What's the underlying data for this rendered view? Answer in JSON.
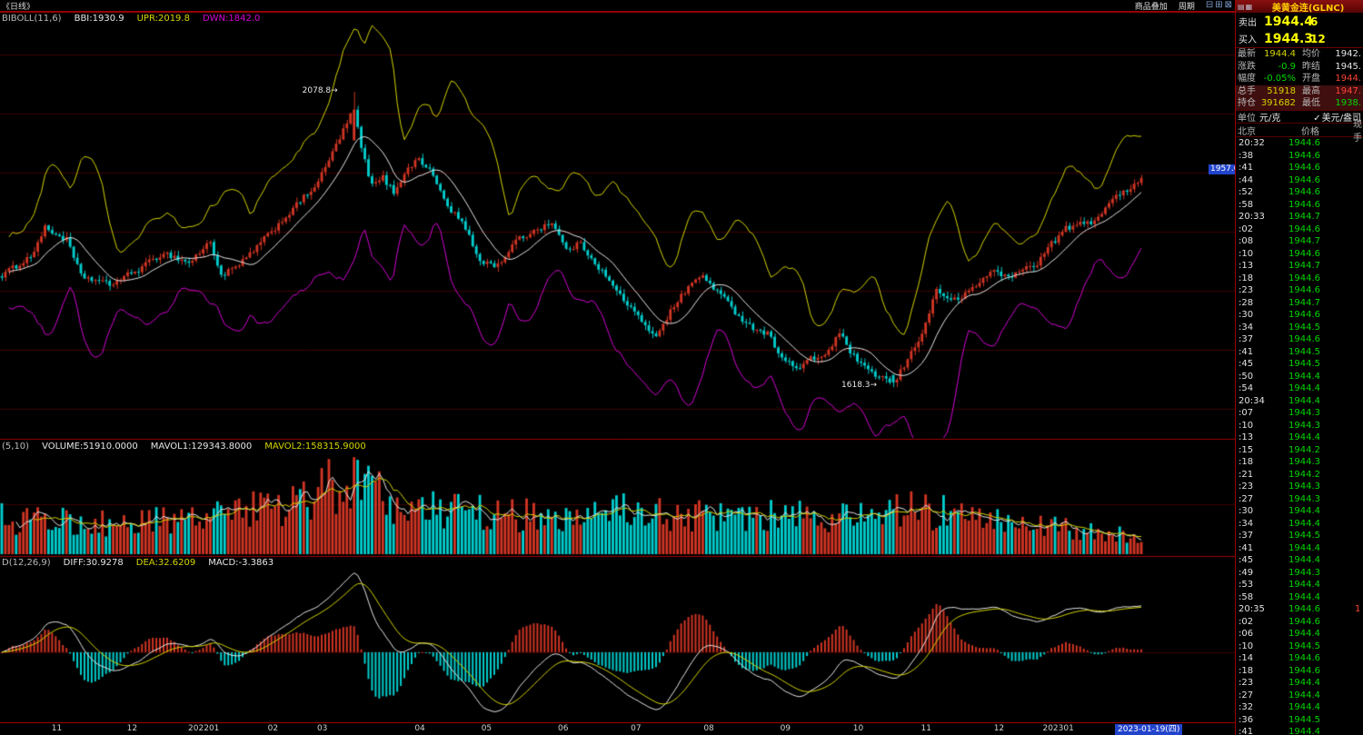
{
  "window": {
    "period_label": "《日线》",
    "toolbar": {
      "overlay_label": "商品叠加",
      "period_label": "周期",
      "window_icons": [
        {
          "name": "minimize-icon",
          "glyph": "⊟"
        },
        {
          "name": "restore-icon",
          "glyph": "⊞"
        },
        {
          "name": "close-icon",
          "glyph": "⊠"
        }
      ]
    },
    "panel_title": "美黄金连(GLNC)",
    "panel_icons": [
      {
        "name": "menu-icon",
        "glyph": "▤"
      },
      {
        "name": "list-icon",
        "glyph": "▦"
      }
    ]
  },
  "indicators": {
    "boll": {
      "segments": [
        {
          "text": "BIBOLL(11,6)",
          "color": "gray"
        },
        {
          "text": "BBI:1930.9",
          "color": "white"
        },
        {
          "text": "UPR:2019.8",
          "color": "yellow"
        },
        {
          "text": "DWN:1842.0",
          "color": "magenta"
        }
      ]
    },
    "volume": {
      "segments": [
        {
          "text": "(5,10)",
          "color": "gray"
        },
        {
          "text": "VOLUME:51910.0000",
          "color": "white"
        },
        {
          "text": "MAVOL1:129343.8000",
          "color": "white"
        },
        {
          "text": "MAVOL2:158315.9000",
          "color": "yellow"
        }
      ]
    },
    "macd": {
      "segments": [
        {
          "text": "D(12,26,9)",
          "color": "gray"
        },
        {
          "text": "DIFF:30.9278",
          "color": "white"
        },
        {
          "text": "DEA:32.6209",
          "color": "yellow"
        },
        {
          "text": "MACD:-3.3863",
          "color": "white"
        }
      ]
    }
  },
  "quote": {
    "sell": {
      "label": "卖出",
      "price": "1944.4",
      "qty": "6"
    },
    "buy": {
      "label": "买入",
      "price": "1944.3",
      "qty": "12"
    },
    "stats": [
      {
        "l1": "最新",
        "v1": "1944.4",
        "c1": "yellow",
        "l2": "均价",
        "v2": "1942.",
        "c2": "white",
        "hl": false
      },
      {
        "l1": "涨跌",
        "v1": "-0.9",
        "c1": "green",
        "l2": "昨结",
        "v2": "1945.",
        "c2": "white",
        "hl": false
      },
      {
        "l1": "幅度",
        "v1": "-0.05%",
        "c1": "green",
        "l2": "开盘",
        "v2": "1944.",
        "c2": "red",
        "hl": false
      },
      {
        "l1": "总手",
        "v1": "51918",
        "c1": "yellow",
        "l2": "最高",
        "v2": "1947.",
        "c2": "red",
        "hl": true
      },
      {
        "l1": "持仓",
        "v1": "391682",
        "c1": "yellow",
        "l2": "最低",
        "v2": "1938.",
        "c2": "green",
        "hl": true
      }
    ],
    "unit": {
      "label": "单位",
      "unit_cn": "元/克",
      "check": "✓",
      "unit_us": "美元/盎司"
    },
    "list_header": {
      "col_time": "北京",
      "col_price": "价格",
      "col_lot": "现手"
    },
    "ticks": [
      {
        "t": "20:32",
        "p": "1944.6"
      },
      {
        "t": ":38",
        "p": "1944.6"
      },
      {
        "t": ":41",
        "p": "1944.6"
      },
      {
        "t": ":44",
        "p": "1944.6"
      },
      {
        "t": ":52",
        "p": "1944.6"
      },
      {
        "t": ":58",
        "p": "1944.6"
      },
      {
        "t": "20:33",
        "p": "1944.7"
      },
      {
        "t": ":02",
        "p": "1944.6"
      },
      {
        "t": ":08",
        "p": "1944.7"
      },
      {
        "t": ":10",
        "p": "1944.6"
      },
      {
        "t": ":13",
        "p": "1944.7"
      },
      {
        "t": ":18",
        "p": "1944.6"
      },
      {
        "t": ":23",
        "p": "1944.6"
      },
      {
        "t": ":28",
        "p": "1944.7"
      },
      {
        "t": ":30",
        "p": "1944.6"
      },
      {
        "t": ":34",
        "p": "1944.5"
      },
      {
        "t": ":37",
        "p": "1944.6"
      },
      {
        "t": ":41",
        "p": "1944.5"
      },
      {
        "t": ":45",
        "p": "1944.5"
      },
      {
        "t": ":50",
        "p": "1944.4"
      },
      {
        "t": ":54",
        "p": "1944.4"
      },
      {
        "t": "20:34",
        "p": "1944.4"
      },
      {
        "t": ":07",
        "p": "1944.3"
      },
      {
        "t": ":10",
        "p": "1944.3"
      },
      {
        "t": ":13",
        "p": "1944.4"
      },
      {
        "t": ":15",
        "p": "1944.2"
      },
      {
        "t": ":18",
        "p": "1944.3"
      },
      {
        "t": ":21",
        "p": "1944.2"
      },
      {
        "t": ":23",
        "p": "1944.3"
      },
      {
        "t": ":27",
        "p": "1944.3"
      },
      {
        "t": ":30",
        "p": "1944.4"
      },
      {
        "t": ":34",
        "p": "1944.4"
      },
      {
        "t": ":37",
        "p": "1944.5"
      },
      {
        "t": ":41",
        "p": "1944.4"
      },
      {
        "t": ":45",
        "p": "1944.4"
      },
      {
        "t": ":49",
        "p": "1944.3"
      },
      {
        "t": ":53",
        "p": "1944.4"
      },
      {
        "t": ":58",
        "p": "1944.4"
      },
      {
        "t": "20:35",
        "p": "1944.6",
        "lot": "1"
      },
      {
        "t": ":02",
        "p": "1944.6"
      },
      {
        "t": ":06",
        "p": "1944.4"
      },
      {
        "t": ":10",
        "p": "1944.5"
      },
      {
        "t": ":14",
        "p": "1944.6"
      },
      {
        "t": ":18",
        "p": "1944.6"
      },
      {
        "t": ":23",
        "p": "1944.4"
      },
      {
        "t": ":27",
        "p": "1944.4"
      },
      {
        "t": ":32",
        "p": "1944.4"
      },
      {
        "t": ":36",
        "p": "1944.5"
      },
      {
        "t": ":41",
        "p": "1944.4"
      }
    ]
  },
  "chart_data": {
    "type": "candlestick",
    "title": "美黄金连(GLNC) 日线",
    "panes": [
      "price+BBIBOLL(11,6)",
      "volume+MAVOL(5,10)",
      "MACD(12,26,9)"
    ],
    "candle_count": 318,
    "price_domain": [
      1545,
      2185
    ],
    "key_points": {
      "peak": {
        "index": 98,
        "high": 2078.8,
        "label": "2078.8→"
      },
      "trough": {
        "index": 248,
        "low": 1618.3,
        "label": "1618.3→"
      },
      "last_close": 1944.4,
      "last_volume": 51910,
      "price_tag": "1957.0"
    },
    "close_anchors": [
      [
        0,
        1793
      ],
      [
        8,
        1822
      ],
      [
        12,
        1866
      ],
      [
        18,
        1848
      ],
      [
        22,
        1792
      ],
      [
        30,
        1778
      ],
      [
        38,
        1802
      ],
      [
        45,
        1828
      ],
      [
        52,
        1812
      ],
      [
        58,
        1845
      ],
      [
        61,
        1792
      ],
      [
        66,
        1808
      ],
      [
        74,
        1855
      ],
      [
        82,
        1902
      ],
      [
        88,
        1938
      ],
      [
        96,
        2030
      ],
      [
        98,
        2052
      ],
      [
        100,
        1990
      ],
      [
        103,
        1932
      ],
      [
        106,
        1945
      ],
      [
        109,
        1922
      ],
      [
        112,
        1952
      ],
      [
        116,
        1976
      ],
      [
        120,
        1948
      ],
      [
        124,
        1900
      ],
      [
        128,
        1876
      ],
      [
        133,
        1815
      ],
      [
        138,
        1808
      ],
      [
        143,
        1846
      ],
      [
        148,
        1862
      ],
      [
        153,
        1876
      ],
      [
        157,
        1832
      ],
      [
        161,
        1842
      ],
      [
        166,
        1806
      ],
      [
        171,
        1768
      ],
      [
        175,
        1742
      ],
      [
        179,
        1712
      ],
      [
        182,
        1700
      ],
      [
        186,
        1736
      ],
      [
        191,
        1776
      ],
      [
        195,
        1792
      ],
      [
        200,
        1762
      ],
      [
        204,
        1736
      ],
      [
        208,
        1714
      ],
      [
        213,
        1702
      ],
      [
        217,
        1666
      ],
      [
        221,
        1646
      ],
      [
        225,
        1662
      ],
      [
        229,
        1668
      ],
      [
        233,
        1702
      ],
      [
        237,
        1666
      ],
      [
        241,
        1642
      ],
      [
        245,
        1634
      ],
      [
        248,
        1622
      ],
      [
        251,
        1652
      ],
      [
        254,
        1682
      ],
      [
        257,
        1716
      ],
      [
        260,
        1772
      ],
      [
        264,
        1752
      ],
      [
        268,
        1762
      ],
      [
        272,
        1782
      ],
      [
        276,
        1802
      ],
      [
        280,
        1788
      ],
      [
        284,
        1802
      ],
      [
        288,
        1812
      ],
      [
        292,
        1842
      ],
      [
        296,
        1866
      ],
      [
        300,
        1872
      ],
      [
        304,
        1878
      ],
      [
        308,
        1906
      ],
      [
        312,
        1922
      ],
      [
        315,
        1936
      ],
      [
        317,
        1944.4
      ]
    ],
    "volume_anchors": [
      [
        0,
        150000
      ],
      [
        20,
        135000
      ],
      [
        40,
        140000
      ],
      [
        60,
        160000
      ],
      [
        80,
        220000
      ],
      [
        88,
        260000
      ],
      [
        96,
        330000
      ],
      [
        100,
        300000
      ],
      [
        110,
        200000
      ],
      [
        130,
        185000
      ],
      [
        150,
        160000
      ],
      [
        165,
        175000
      ],
      [
        175,
        195000
      ],
      [
        190,
        165000
      ],
      [
        205,
        150000
      ],
      [
        215,
        165000
      ],
      [
        225,
        155000
      ],
      [
        240,
        160000
      ],
      [
        248,
        210000
      ],
      [
        255,
        190000
      ],
      [
        265,
        170000
      ],
      [
        280,
        130000
      ],
      [
        295,
        110000
      ],
      [
        305,
        95000
      ],
      [
        312,
        80000
      ],
      [
        317,
        51910
      ]
    ],
    "x_axis_labels": [
      {
        "label": "11",
        "f": 0.046
      },
      {
        "label": "12",
        "f": 0.107
      },
      {
        "label": "202201",
        "f": 0.165
      },
      {
        "label": "02",
        "f": 0.221
      },
      {
        "label": "03",
        "f": 0.261
      },
      {
        "label": "04",
        "f": 0.34
      },
      {
        "label": "05",
        "f": 0.394
      },
      {
        "label": "06",
        "f": 0.456
      },
      {
        "label": "07",
        "f": 0.515
      },
      {
        "label": "08",
        "f": 0.574
      },
      {
        "label": "09",
        "f": 0.636
      },
      {
        "label": "10",
        "f": 0.695
      },
      {
        "label": "11",
        "f": 0.75
      },
      {
        "label": "12",
        "f": 0.809
      },
      {
        "label": "202301",
        "f": 0.857
      }
    ],
    "last_date_label": "2023-01-19(四)",
    "colors": {
      "up": "#d03524",
      "down": "#00cdcd",
      "mid_line": "#e6e6e6",
      "upper_line": "#d4d400",
      "lower_line": "#d400d4",
      "grid": "#3c0000",
      "separator": "#9c0000",
      "volume_ma1": "#e6e6e6",
      "volume_ma2": "#d4d400",
      "macd_diff": "#e6e6e6",
      "macd_dea": "#d4d400",
      "hist_pos": "#d03524",
      "hist_neg": "#00cdcd",
      "price_tag_bg": "#2244cc"
    }
  }
}
